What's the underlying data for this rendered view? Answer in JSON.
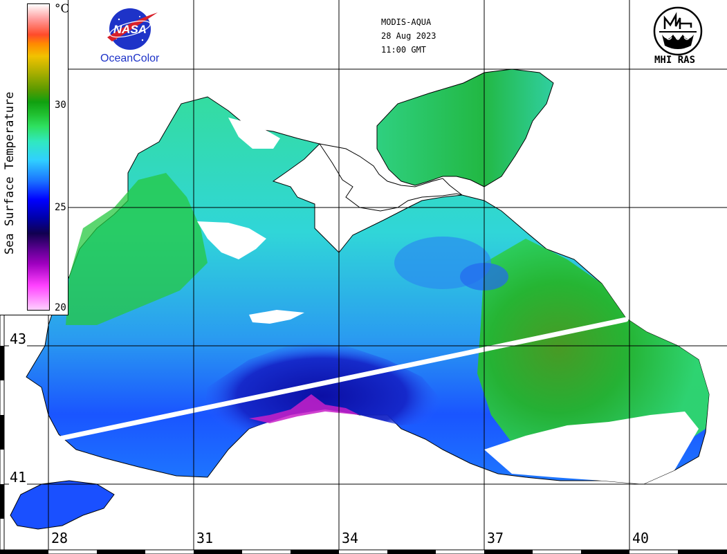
{
  "header": {
    "satellite": "MODIS-AQUA",
    "date": "28 Aug 2023",
    "time": "11:00 GMT"
  },
  "logos": {
    "nasa_text": "NASA",
    "oceancolor_label": "OceanColor",
    "mhi_label": "MHI RAS"
  },
  "legend": {
    "title": "Sea Surface Temperature",
    "unit": "°C",
    "ticks": [
      "30",
      "25",
      "20"
    ]
  },
  "grid": {
    "latitudes": [
      "43",
      "41"
    ],
    "longitudes": [
      "28",
      "31",
      "34",
      "37",
      "40"
    ]
  },
  "colors": {
    "ocean_warm": "#21c83a",
    "ocean_mid": "#2fd6e6",
    "ocean_cool": "#1a5cff",
    "ocean_cold": "#0a10a0",
    "land": "#ffffff",
    "coastline": "#000000",
    "track": "#ffffff"
  }
}
